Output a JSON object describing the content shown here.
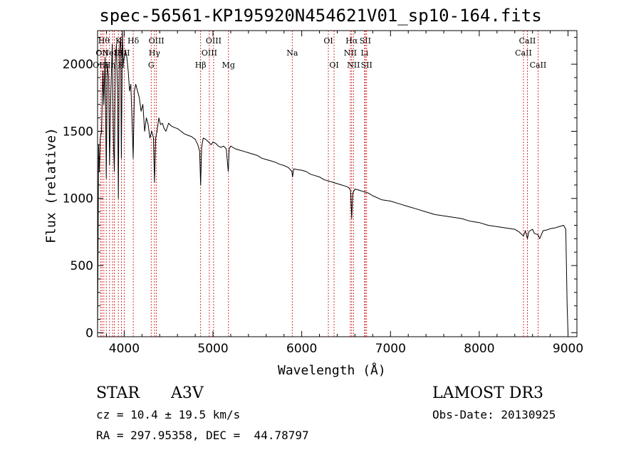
{
  "header": {
    "title": "spec-56561-KP195920N454621V01_sp10-164.fits"
  },
  "info": {
    "object_class": "STAR",
    "subclass": "A3V",
    "survey": "LAMOST DR3",
    "cz": "cz = 10.4 ± 19.5 km/s",
    "obs_date": "Obs-Date: 20130925",
    "radec": "RA = 297.95358, DEC =  44.78797"
  },
  "chart_data": {
    "type": "line",
    "title": "spec-56561-KP195920N454621V01_sp10-164.fits",
    "xlabel": "Wavelength (Å)",
    "ylabel": "Flux (relative)",
    "xlim": [
      3700,
      9100
    ],
    "ylim": [
      -30,
      2250
    ],
    "xticks": [
      4000,
      5000,
      6000,
      7000,
      8000,
      9000
    ],
    "yticks": [
      0,
      500,
      1000,
      1500,
      2000
    ],
    "line_color": "#000000",
    "marker_color": "#cc0000",
    "series": [
      {
        "name": "flux",
        "x": [
          3700,
          3712,
          3720,
          3730,
          3745,
          3760,
          3770,
          3785,
          3798,
          3810,
          3825,
          3835,
          3850,
          3865,
          3880,
          3889,
          3900,
          3912,
          3925,
          3934,
          3945,
          3960,
          3968,
          3980,
          3990,
          4000,
          4015,
          4030,
          4045,
          4060,
          4075,
          4090,
          4101,
          4115,
          4130,
          4150,
          4170,
          4190,
          4210,
          4230,
          4250,
          4270,
          4290,
          4310,
          4330,
          4341,
          4355,
          4370,
          4390,
          4410,
          4430,
          4450,
          4470,
          4500,
          4530,
          4560,
          4600,
          4640,
          4680,
          4720,
          4760,
          4800,
          4830,
          4850,
          4861,
          4872,
          4890,
          4920,
          4950,
          4980,
          5000,
          5030,
          5060,
          5090,
          5120,
          5150,
          5172,
          5183,
          5200,
          5250,
          5300,
          5350,
          5400,
          5450,
          5500,
          5550,
          5600,
          5650,
          5700,
          5750,
          5800,
          5850,
          5890,
          5896,
          5910,
          5950,
          6000,
          6050,
          6100,
          6150,
          6200,
          6250,
          6300,
          6350,
          6400,
          6450,
          6500,
          6530,
          6550,
          6563,
          6575,
          6600,
          6650,
          6700,
          6750,
          6800,
          6900,
          7000,
          7100,
          7200,
          7300,
          7400,
          7500,
          7600,
          7700,
          7800,
          7900,
          8000,
          8100,
          8200,
          8300,
          8400,
          8450,
          8498,
          8520,
          8542,
          8560,
          8600,
          8620,
          8662,
          8680,
          8720,
          8760,
          8800,
          8850,
          8900,
          8950,
          8975,
          8990,
          9000
        ],
        "y": [
          0,
          1400,
          1200,
          1450,
          1500,
          1950,
          1700,
          2050,
          1150,
          2000,
          1900,
          1250,
          1800,
          2150,
          1400,
          1200,
          2000,
          2150,
          1800,
          1000,
          2100,
          2200,
          1300,
          2250,
          2000,
          2050,
          2100,
          2050,
          1950,
          1800,
          1850,
          1550,
          1300,
          1800,
          1850,
          1800,
          1750,
          1650,
          1700,
          1500,
          1600,
          1550,
          1450,
          1500,
          1450,
          1120,
          1450,
          1500,
          1600,
          1550,
          1560,
          1520,
          1500,
          1560,
          1540,
          1530,
          1520,
          1500,
          1480,
          1470,
          1460,
          1440,
          1400,
          1350,
          1100,
          1380,
          1450,
          1440,
          1420,
          1400,
          1420,
          1410,
          1390,
          1380,
          1390,
          1370,
          1200,
          1370,
          1390,
          1370,
          1360,
          1350,
          1340,
          1330,
          1320,
          1300,
          1290,
          1280,
          1270,
          1255,
          1245,
          1230,
          1200,
          1160,
          1220,
          1215,
          1210,
          1200,
          1180,
          1170,
          1160,
          1140,
          1130,
          1120,
          1110,
          1100,
          1090,
          1080,
          1060,
          850,
          1040,
          1070,
          1060,
          1050,
          1040,
          1020,
          990,
          980,
          960,
          940,
          920,
          900,
          880,
          870,
          860,
          850,
          830,
          820,
          800,
          790,
          780,
          770,
          750,
          720,
          760,
          700,
          755,
          770,
          740,
          730,
          700,
          760,
          765,
          775,
          780,
          790,
          800,
          770,
          200,
          0
        ]
      }
    ],
    "lines": [
      {
        "wl": 3734,
        "label": "OIII",
        "row": 2
      },
      {
        "wl": 3750,
        "label": "OII",
        "row": 1
      },
      {
        "wl": 3771,
        "label": "Hθ",
        "row": 0
      },
      {
        "wl": 3798,
        "label": "",
        "row": -1
      },
      {
        "wl": 3835,
        "label": "Hη",
        "row": 2
      },
      {
        "wl": 3869,
        "label": "NeIII",
        "row": 1
      },
      {
        "wl": 3889,
        "label": "",
        "row": -1
      },
      {
        "wl": 3934,
        "label": "K",
        "row": 0
      },
      {
        "wl": 3968,
        "label": "H",
        "row": 2
      },
      {
        "wl": 4000,
        "label": "SII",
        "row": 1
      },
      {
        "wl": 4102,
        "label": "Hδ",
        "row": 0
      },
      {
        "wl": 4304,
        "label": "G",
        "row": 2
      },
      {
        "wl": 4341,
        "label": "Hγ",
        "row": 1
      },
      {
        "wl": 4363,
        "label": "OIII",
        "row": 0
      },
      {
        "wl": 4861,
        "label": "Hβ",
        "row": 2
      },
      {
        "wl": 4959,
        "label": "OIII",
        "row": 1
      },
      {
        "wl": 5007,
        "label": "OIII",
        "row": 0
      },
      {
        "wl": 5175,
        "label": "Mg",
        "row": 2
      },
      {
        "wl": 5893,
        "label": "Na",
        "row": 1
      },
      {
        "wl": 6300,
        "label": "OI",
        "row": 0
      },
      {
        "wl": 6364,
        "label": "OI",
        "row": 2
      },
      {
        "wl": 6548,
        "label": "NII",
        "row": 1
      },
      {
        "wl": 6563,
        "label": "Hα",
        "row": 0
      },
      {
        "wl": 6583,
        "label": "NII",
        "row": 2
      },
      {
        "wl": 6708,
        "label": "Li",
        "row": 1
      },
      {
        "wl": 6716,
        "label": "SII",
        "row": 0
      },
      {
        "wl": 6731,
        "label": "SII",
        "row": 2
      },
      {
        "wl": 8498,
        "label": "CaII",
        "row": 1
      },
      {
        "wl": 8542,
        "label": "CaII",
        "row": 0
      },
      {
        "wl": 8662,
        "label": "CaII",
        "row": 2
      }
    ]
  }
}
